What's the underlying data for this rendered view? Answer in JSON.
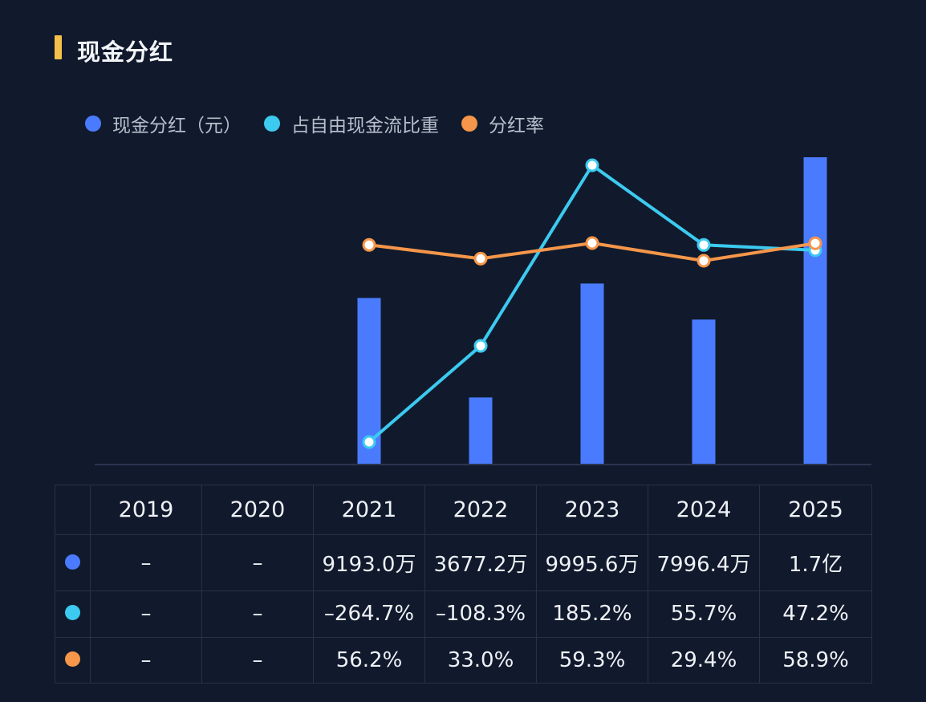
{
  "title": "现金分红",
  "legend": [
    {
      "label": "现金分红（元）",
      "color": "#4a7bff"
    },
    {
      "label": "占自由现金流比重",
      "color": "#3ccaf0"
    },
    {
      "label": "分红率",
      "color": "#f5964a"
    }
  ],
  "chart_data": {
    "type": "bar",
    "categories": [
      "2019",
      "2020",
      "2021",
      "2022",
      "2023",
      "2024",
      "2025"
    ],
    "series": [
      {
        "name": "现金分红（元）",
        "type": "bar",
        "color": "#4a7bff",
        "values": [
          null,
          null,
          91930000,
          36772000,
          99956000,
          79964000,
          170000000
        ]
      },
      {
        "name": "占自由现金流比重",
        "type": "line",
        "color": "#3ccaf0",
        "values": [
          null,
          null,
          -264.7,
          -108.3,
          185.2,
          55.7,
          47.2
        ]
      },
      {
        "name": "分红率",
        "type": "line",
        "color": "#f5964a",
        "values": [
          null,
          null,
          56.2,
          33.0,
          59.3,
          29.4,
          58.9
        ]
      }
    ],
    "table": {
      "headers": [
        "2019",
        "2020",
        "2021",
        "2022",
        "2023",
        "2024",
        "2025"
      ],
      "rows": [
        {
          "color": "#4a7bff",
          "cells": [
            "–",
            "–",
            "9193.0万",
            "3677.2万",
            "9995.6万",
            "7996.4万",
            "1.7亿"
          ]
        },
        {
          "color": "#3ccaf0",
          "cells": [
            "–",
            "–",
            "–264.7%",
            "–108.3%",
            "185.2%",
            "55.7%",
            "47.2%"
          ]
        },
        {
          "color": "#f5964a",
          "cells": [
            "–",
            "–",
            "56.2%",
            "33.0%",
            "59.3%",
            "29.4%",
            "58.9%"
          ]
        }
      ]
    }
  }
}
